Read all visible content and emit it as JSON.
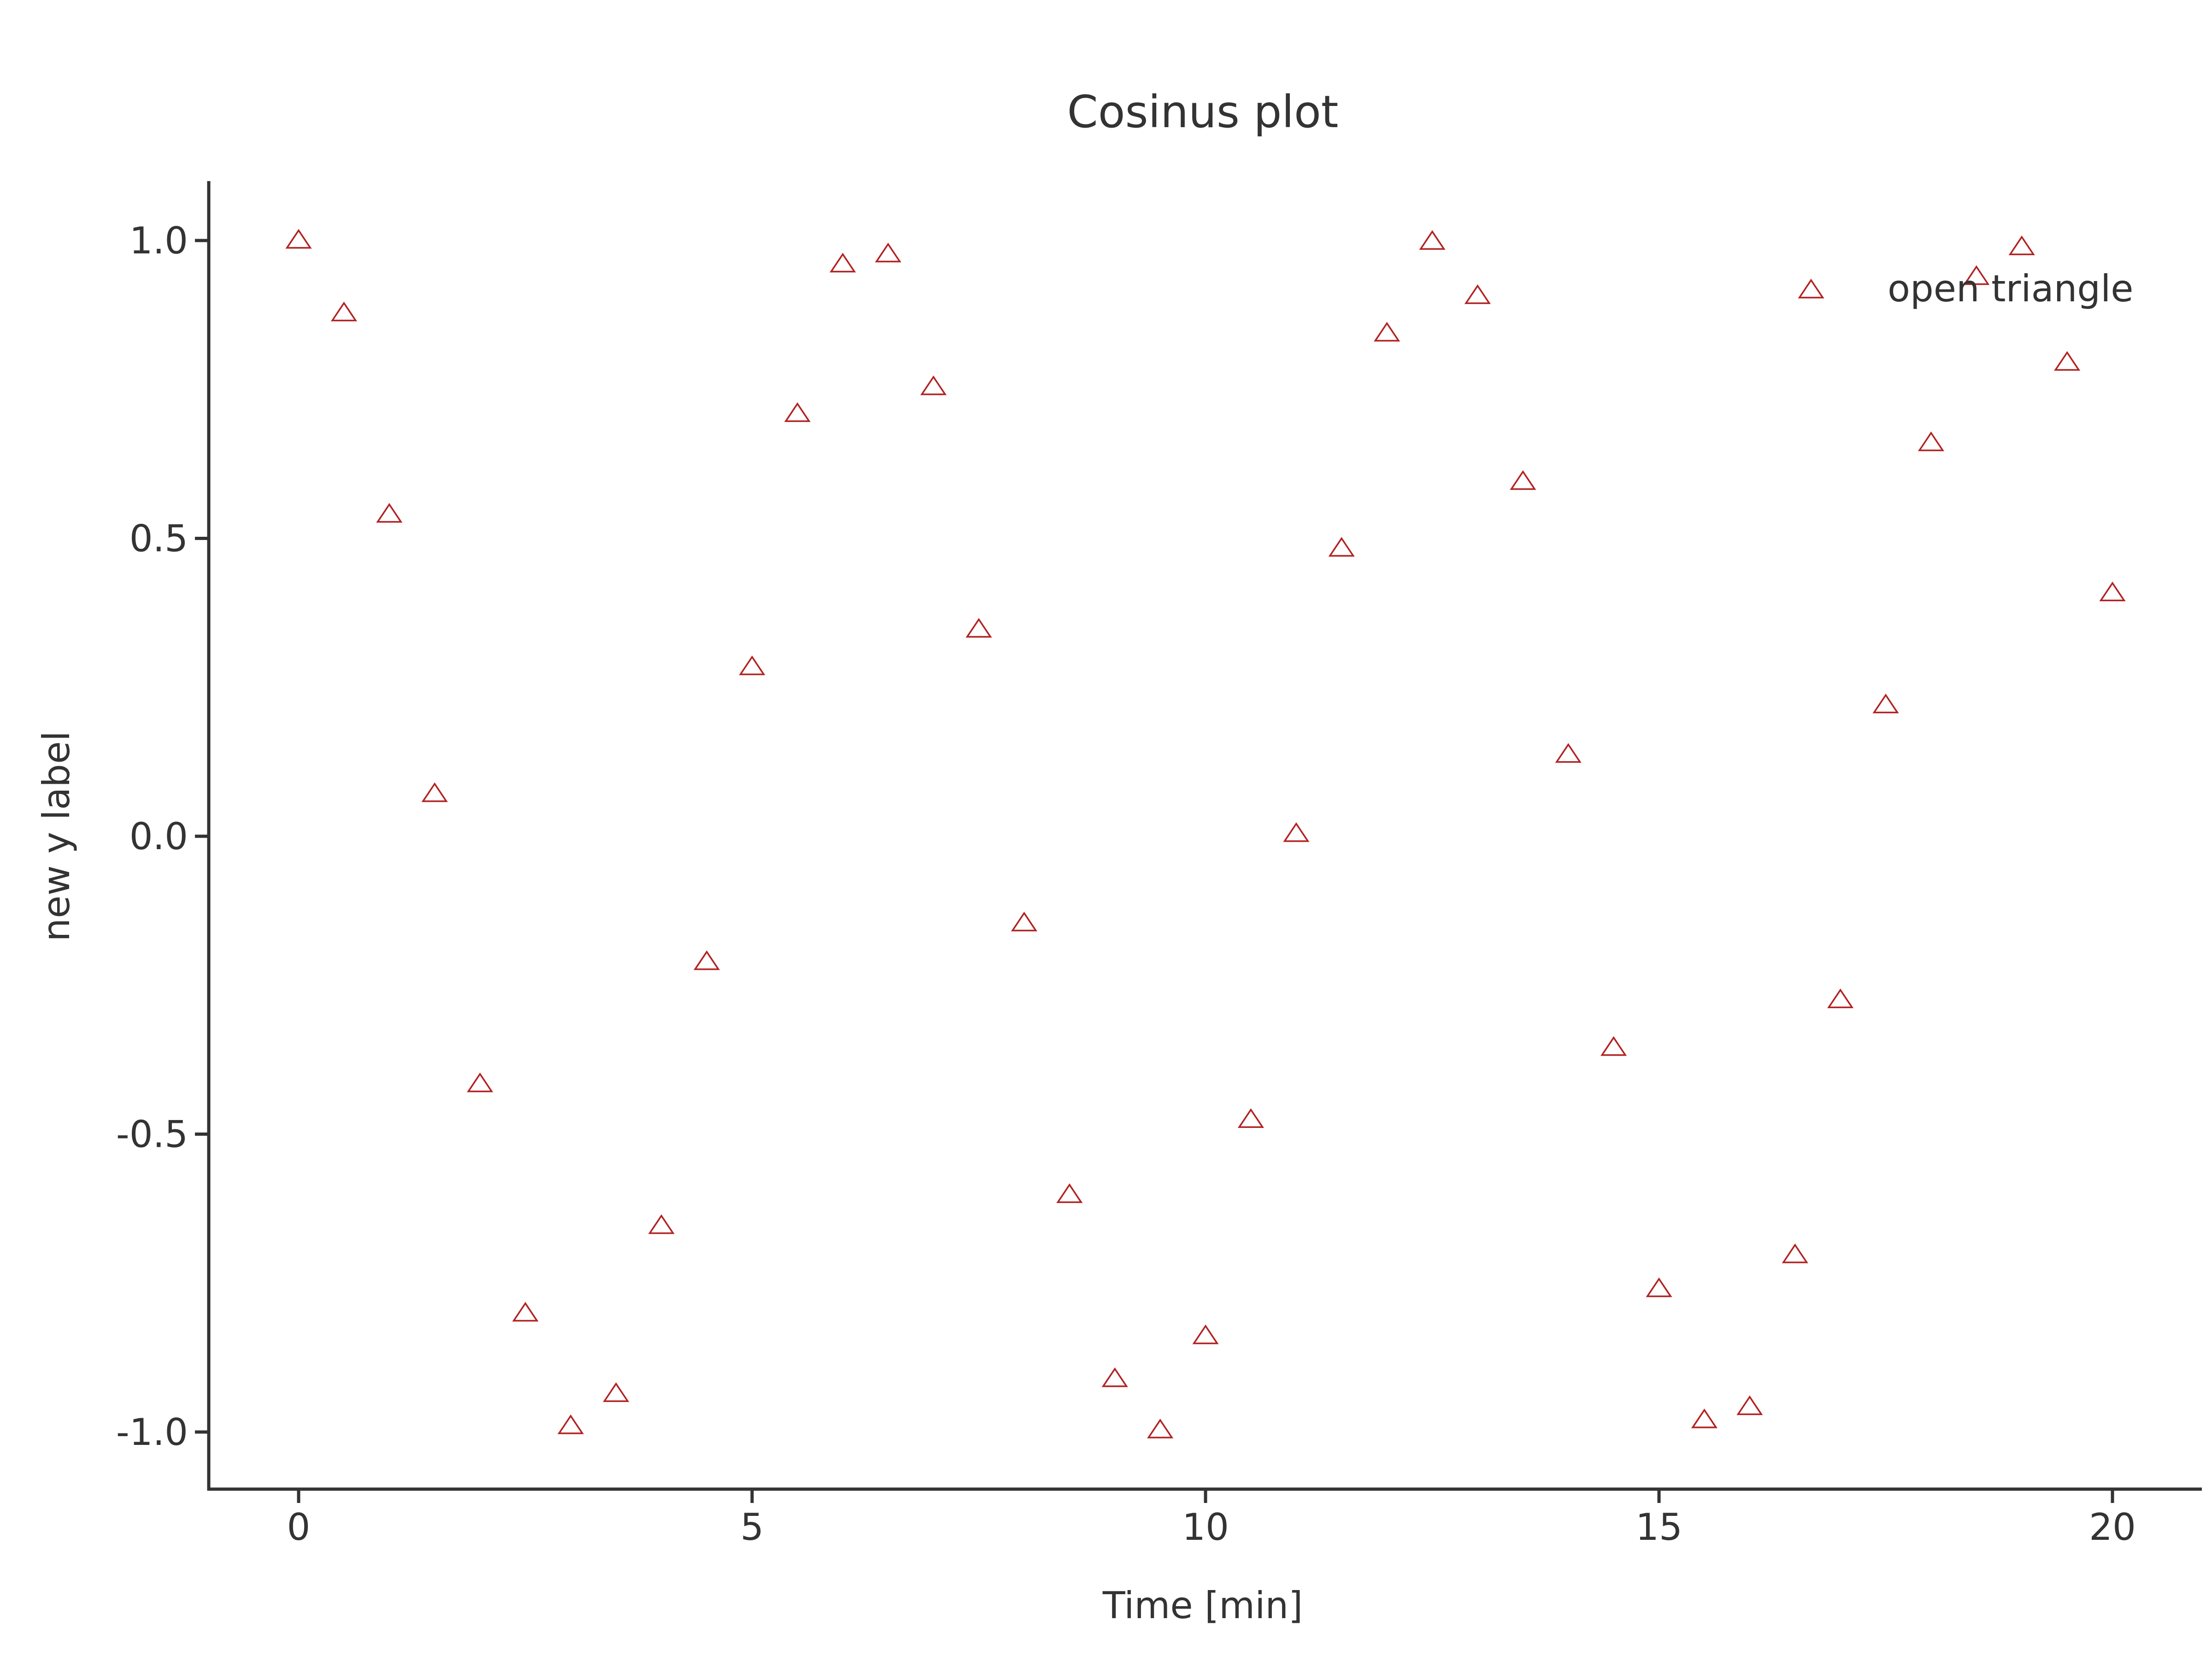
{
  "chart_data": {
    "type": "scatter",
    "title": "Cosinus plot",
    "xlabel": "Time [min]",
    "ylabel": "new y label",
    "xlim": [
      -1,
      21
    ],
    "ylim": [
      -1.1,
      1.1
    ],
    "xticks": [
      0,
      5,
      10,
      15,
      20
    ],
    "xtick_labels": [
      "0",
      "5",
      "10",
      "15",
      "20"
    ],
    "yticks": [
      -1.0,
      -0.5,
      0.0,
      0.5,
      1.0
    ],
    "ytick_labels": [
      "-1.0",
      "-0.5",
      "0.0",
      "0.5",
      "1.0"
    ],
    "grid": false,
    "legend_position": "top-right",
    "marker": "open-triangle",
    "colors": {
      "series": "#b22222",
      "axis": "#333333",
      "text": "#333333"
    },
    "series": [
      {
        "name": "open triangle",
        "x": [
          0,
          0.5,
          1,
          1.5,
          2,
          2.5,
          3,
          3.5,
          4,
          4.5,
          5,
          5.5,
          6,
          6.5,
          7,
          7.5,
          8,
          8.5,
          9,
          9.5,
          10,
          10.5,
          11,
          11.5,
          12,
          12.5,
          13,
          13.5,
          14,
          14.5,
          15,
          15.5,
          16,
          16.5,
          17,
          17.5,
          18,
          18.5,
          19,
          19.5,
          20
        ],
        "y": [
          1.0,
          0.878,
          0.54,
          0.071,
          -0.416,
          -0.801,
          -0.99,
          -0.936,
          -0.654,
          -0.211,
          0.284,
          0.709,
          0.96,
          0.977,
          0.754,
          0.347,
          -0.146,
          -0.602,
          -0.911,
          -0.997,
          -0.839,
          -0.476,
          0.004,
          0.483,
          0.844,
          0.998,
          0.907,
          0.595,
          0.137,
          -0.355,
          -0.76,
          -0.98,
          -0.958,
          -0.703,
          -0.275,
          0.22,
          0.66,
          0.939,
          0.989,
          0.795,
          0.408
        ]
      }
    ]
  }
}
